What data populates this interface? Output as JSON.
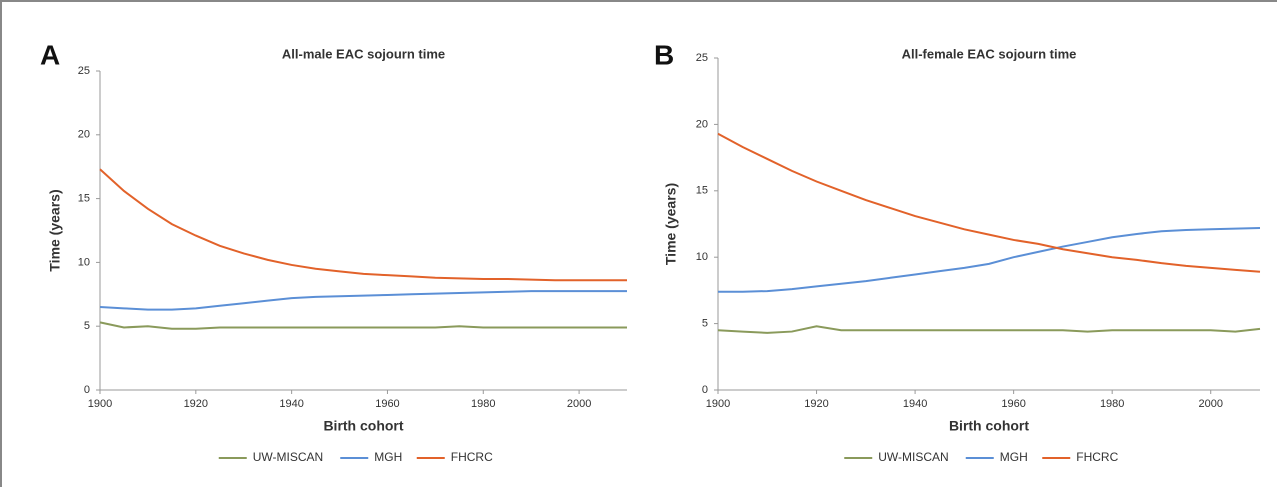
{
  "chart_data": [
    {
      "type": "line",
      "panel": "A",
      "title": "All-male EAC sojourn time",
      "x_label": "Birth cohort",
      "y_label": "Time (years)",
      "x": [
        1900,
        1905,
        1910,
        1915,
        1920,
        1925,
        1930,
        1935,
        1940,
        1945,
        1950,
        1955,
        1960,
        1965,
        1970,
        1975,
        1980,
        1985,
        1990,
        1995,
        2000,
        2005,
        2010
      ],
      "series": [
        {
          "name": "UW-MISCAN",
          "color": "#8a9a5b",
          "values": [
            5.3,
            4.9,
            5.0,
            4.8,
            4.8,
            4.9,
            4.9,
            4.9,
            4.9,
            4.9,
            4.9,
            4.9,
            4.9,
            4.9,
            4.9,
            5.0,
            4.9,
            4.9,
            4.9,
            4.9,
            4.9,
            4.9,
            4.9
          ]
        },
        {
          "name": "MGH",
          "color": "#5b8fd6",
          "values": [
            6.5,
            6.4,
            6.3,
            6.3,
            6.4,
            6.6,
            6.8,
            7.0,
            7.2,
            7.3,
            7.35,
            7.4,
            7.45,
            7.5,
            7.55,
            7.6,
            7.65,
            7.7,
            7.75,
            7.75,
            7.75,
            7.75,
            7.75
          ]
        },
        {
          "name": "FHCRC",
          "color": "#e2622a",
          "values": [
            17.3,
            15.6,
            14.2,
            13.0,
            12.1,
            11.3,
            10.7,
            10.2,
            9.8,
            9.5,
            9.3,
            9.1,
            9.0,
            8.9,
            8.8,
            8.75,
            8.7,
            8.7,
            8.65,
            8.6,
            8.6,
            8.6,
            8.6
          ]
        }
      ],
      "xlim": [
        1900,
        2010
      ],
      "xticks": [
        1900,
        1920,
        1940,
        1960,
        1980,
        2000
      ],
      "ylim": [
        0,
        25
      ],
      "yticks": [
        0,
        5,
        10,
        15,
        20,
        25
      ],
      "grid": false,
      "legend": "bottom"
    },
    {
      "type": "line",
      "panel": "B",
      "title": "All-female EAC sojourn time",
      "x_label": "Birth cohort",
      "y_label": "Time (years)",
      "x": [
        1900,
        1905,
        1910,
        1915,
        1920,
        1925,
        1930,
        1935,
        1940,
        1945,
        1950,
        1955,
        1960,
        1965,
        1970,
        1975,
        1980,
        1985,
        1990,
        1995,
        2000,
        2005,
        2010
      ],
      "series": [
        {
          "name": "UW-MISCAN",
          "color": "#8a9a5b",
          "values": [
            4.5,
            4.4,
            4.3,
            4.4,
            4.8,
            4.5,
            4.5,
            4.5,
            4.5,
            4.5,
            4.5,
            4.5,
            4.5,
            4.5,
            4.5,
            4.4,
            4.5,
            4.5,
            4.5,
            4.5,
            4.5,
            4.4,
            4.6
          ]
        },
        {
          "name": "MGH",
          "color": "#5b8fd6",
          "values": [
            7.4,
            7.4,
            7.45,
            7.6,
            7.8,
            8.0,
            8.2,
            8.45,
            8.7,
            8.95,
            9.2,
            9.5,
            10.0,
            10.4,
            10.8,
            11.15,
            11.5,
            11.75,
            11.95,
            12.05,
            12.1,
            12.15,
            12.2
          ]
        },
        {
          "name": "FHCRC",
          "color": "#e2622a",
          "values": [
            19.3,
            18.3,
            17.4,
            16.5,
            15.7,
            15.0,
            14.3,
            13.7,
            13.1,
            12.6,
            12.1,
            11.7,
            11.3,
            11.0,
            10.6,
            10.3,
            10.0,
            9.8,
            9.55,
            9.35,
            9.2,
            9.05,
            8.9
          ]
        }
      ],
      "xlim": [
        1900,
        2010
      ],
      "xticks": [
        1900,
        1920,
        1940,
        1960,
        1980,
        2000
      ],
      "ylim": [
        0,
        25
      ],
      "yticks": [
        0,
        5,
        10,
        15,
        20,
        25
      ],
      "grid": false,
      "legend": "bottom"
    }
  ]
}
